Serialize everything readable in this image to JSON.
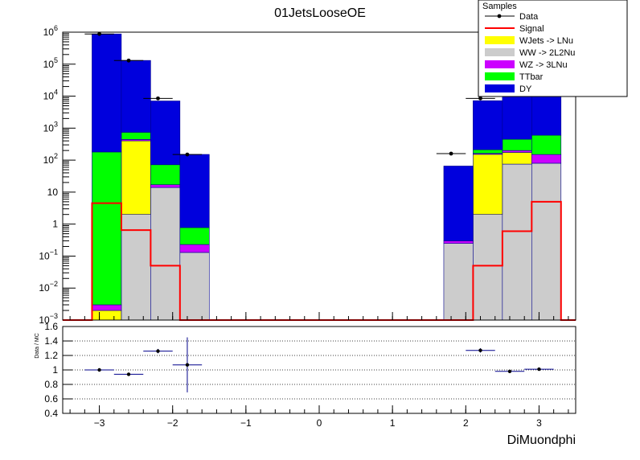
{
  "chart_data": {
    "type": "bar",
    "title": "01JetsLooseOE",
    "xlabel": "DiMuondphi",
    "ylabel": "",
    "ratio_ylabel": "Data / MC",
    "xlim": [
      -3.5,
      3.5
    ],
    "ylim": [
      0.001,
      1000000
    ],
    "log_y": true,
    "ratio_ylim": [
      0.4,
      1.6
    ],
    "x_ticks": [
      -3,
      -2,
      -1,
      0,
      1,
      2,
      3
    ],
    "x_tick_labels": [
      "−3",
      "−2",
      "−1",
      "0",
      "1",
      "2",
      "3"
    ],
    "y_ticks": [
      {
        "base": "10",
        "exp": "−3",
        "value": 0.001
      },
      {
        "base": "10",
        "exp": "−2",
        "value": 0.01
      },
      {
        "base": "10",
        "exp": "−1",
        "value": 0.1
      },
      {
        "base": "1",
        "exp": "",
        "value": 1
      },
      {
        "base": "10",
        "exp": "",
        "value": 10
      },
      {
        "base": "10",
        "exp": "2",
        "value": 100
      },
      {
        "base": "10",
        "exp": "3",
        "value": 1000
      },
      {
        "base": "10",
        "exp": "4",
        "value": 10000
      },
      {
        "base": "10",
        "exp": "5",
        "value": 100000
      },
      {
        "base": "10",
        "exp": "6",
        "value": 1000000
      }
    ],
    "ratio_ticks": [
      "0.4",
      "0.6",
      "0.8",
      "1",
      "1.2",
      "1.4",
      "1.6"
    ],
    "ratio_tick_values": [
      0.4,
      0.6,
      0.8,
      1.0,
      1.2,
      1.4,
      1.6
    ],
    "bin_edges": [
      -3.5,
      -3.1,
      -2.7,
      -2.3,
      -1.9,
      -1.5,
      -1.1,
      -0.7,
      -0.3,
      0.1,
      0.5,
      0.9,
      1.3,
      1.7,
      2.1,
      2.5,
      2.9,
      3.3,
      3.5
    ],
    "legend": {
      "title": "Samples",
      "position": "top-right",
      "entries": [
        {
          "label": "Data",
          "color": "#000000",
          "style": "marker"
        },
        {
          "label": "Signal",
          "color": "#ff0000",
          "style": "line"
        },
        {
          "label": "WJets -> LNu",
          "color": "#ffff00",
          "style": "fill"
        },
        {
          "label": "WW -> 2L2Nu",
          "color": "#cccccc",
          "style": "fill"
        },
        {
          "label": "WZ -> 3LNu",
          "color": "#cc00ff",
          "style": "fill"
        },
        {
          "label": "TTbar",
          "color": "#00ff00",
          "style": "fill"
        },
        {
          "label": "DY",
          "color": "#0000dd",
          "style": "fill"
        }
      ]
    },
    "stack": [
      {
        "name": "WW -> 2L2Nu",
        "color": "#cccccc",
        "values": [
          0,
          0.001,
          2,
          14,
          0.13,
          0,
          0,
          0,
          0,
          0,
          0,
          0,
          0,
          0.25,
          2,
          75,
          80,
          0
        ]
      },
      {
        "name": "WJets -> LNu",
        "color": "#ffff00",
        "values": [
          0,
          0.001,
          400,
          0,
          0,
          0,
          0,
          0,
          0,
          0,
          0,
          0,
          0,
          0,
          150,
          100,
          0,
          0
        ]
      },
      {
        "name": "WZ -> 3LNu",
        "color": "#cc00ff",
        "values": [
          0,
          0.001,
          40,
          3,
          0.1,
          0,
          0,
          0,
          0,
          0,
          0,
          0,
          0,
          0.05,
          10,
          25,
          70,
          0
        ]
      },
      {
        "name": "TTbar",
        "color": "#00ff00",
        "values": [
          0,
          180,
          300,
          55,
          0.55,
          0,
          0,
          0,
          0,
          0,
          0,
          0,
          0,
          0,
          50,
          250,
          450,
          0
        ]
      },
      {
        "name": "DY",
        "color": "#0000dd",
        "values": [
          0,
          880000,
          130000,
          7000,
          150,
          0,
          0,
          0,
          0,
          0,
          0,
          0,
          0,
          65,
          7000,
          130000,
          880000,
          0
        ]
      }
    ],
    "signal": {
      "name": "Signal",
      "color": "#ff0000",
      "values": [
        0,
        4.5,
        0.65,
        0.05,
        0,
        0,
        0,
        0,
        0,
        0,
        0,
        0,
        0,
        0,
        0.05,
        0.6,
        5,
        0
      ]
    },
    "data": {
      "name": "Data",
      "x": [
        -3.0,
        -2.6,
        -2.2,
        -1.8,
        1.8,
        2.2,
        2.6,
        3.0
      ],
      "y": [
        880000,
        130000,
        8500,
        150,
        160,
        8500,
        130000,
        880000
      ]
    },
    "ratio": {
      "x": [
        -3.0,
        -2.6,
        -2.2,
        -1.8,
        2.2,
        2.6,
        3.0
      ],
      "y": [
        1.0,
        0.94,
        1.26,
        1.07,
        1.27,
        0.98,
        1.01
      ],
      "err": [
        0.003,
        0.005,
        0.03,
        0.38,
        0.03,
        0.005,
        0.003
      ],
      "xerr": 0.2
    }
  }
}
